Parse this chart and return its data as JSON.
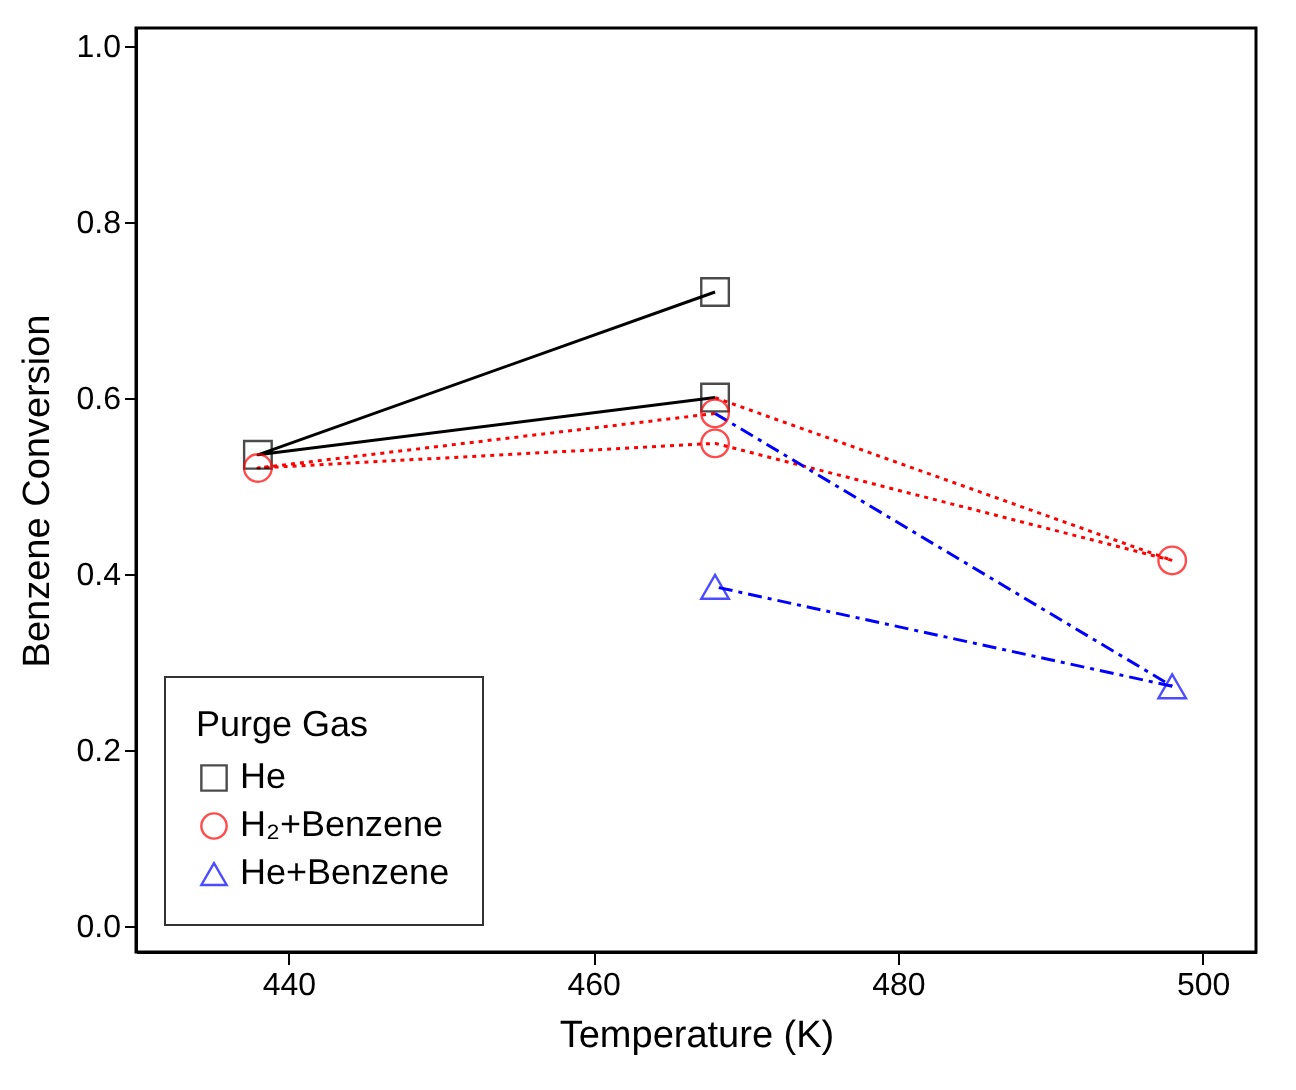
{
  "chart_data": {
    "type": "line",
    "xlabel": "Temperature (K)",
    "ylabel": "Benzene Conversion",
    "legend_title": "Purge Gas",
    "xlim": [
      430,
      503.5
    ],
    "xticks": [
      440,
      460,
      480,
      500
    ],
    "ylim": [
      -0.03,
      1.02
    ],
    "yticks": [
      {
        "value": 0,
        "label": "0.0"
      },
      {
        "value": 0.2,
        "label": "0.2"
      },
      {
        "value": 0.4,
        "label": "0.4"
      },
      {
        "value": 0.6,
        "label": "0.6"
      },
      {
        "value": 0.8,
        "label": "0.8"
      },
      {
        "value": 1,
        "label": "1.0"
      }
    ],
    "grid": false,
    "legend": "bottom left",
    "series": [
      {
        "name": "He",
        "color": "#000000",
        "marker": "square",
        "line_style": "solid",
        "x": [
          468,
          438,
          468
        ],
        "values": [
          0.72,
          0.535,
          0.6
        ]
      },
      {
        "color": "#ff0000",
        "line_style": "dotted",
        "x": [
          468,
          498
        ],
        "values": [
          0.6,
          0.415
        ]
      },
      {
        "name": "H₂+Benzene",
        "color": "#ff0000",
        "marker": "circle",
        "line_style": "dotted",
        "x": [
          498,
          468,
          438,
          468
        ],
        "values": [
          0.415,
          0.548,
          0.52,
          0.582
        ]
      },
      {
        "color": "#0000ff",
        "line_style": "dashed",
        "x": [
          468,
          498
        ],
        "values": [
          0.582,
          0.272
        ]
      },
      {
        "name": "He+Benzene",
        "color": "#0000ff",
        "marker": "triangle",
        "line_style": "dashed",
        "x": [
          498,
          468
        ],
        "values": [
          0.272,
          0.385
        ]
      }
    ]
  }
}
